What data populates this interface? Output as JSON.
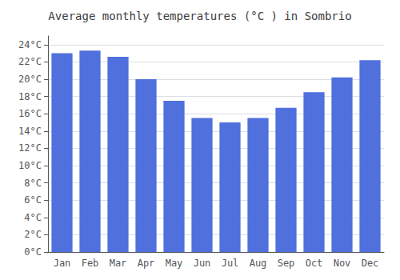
{
  "chart_data": {
    "type": "bar",
    "title": "Average monthly temperatures (°C ) in Sombrio",
    "categories": [
      "Jan",
      "Feb",
      "Mar",
      "Apr",
      "May",
      "Jun",
      "Jul",
      "Aug",
      "Sep",
      "Oct",
      "Nov",
      "Dec"
    ],
    "values": [
      23.0,
      23.3,
      22.6,
      20.0,
      17.5,
      15.5,
      15.0,
      15.5,
      16.7,
      18.5,
      20.2,
      22.2
    ],
    "ylim": [
      0,
      25
    ],
    "yticks": [
      {
        "value": 0,
        "label": "0°C"
      },
      {
        "value": 2,
        "label": "2°C"
      },
      {
        "value": 4,
        "label": "4°C"
      },
      {
        "value": 6,
        "label": "6°C"
      },
      {
        "value": 8,
        "label": "8°C"
      },
      {
        "value": 10,
        "label": "10°C"
      },
      {
        "value": 12,
        "label": "12°C"
      },
      {
        "value": 14,
        "label": "14°C"
      },
      {
        "value": 16,
        "label": "16°C"
      },
      {
        "value": 18,
        "label": "18°C"
      },
      {
        "value": 20,
        "label": "20°C"
      },
      {
        "value": 22,
        "label": "22°C"
      },
      {
        "value": 24,
        "label": "24°C"
      }
    ],
    "grid": true
  }
}
